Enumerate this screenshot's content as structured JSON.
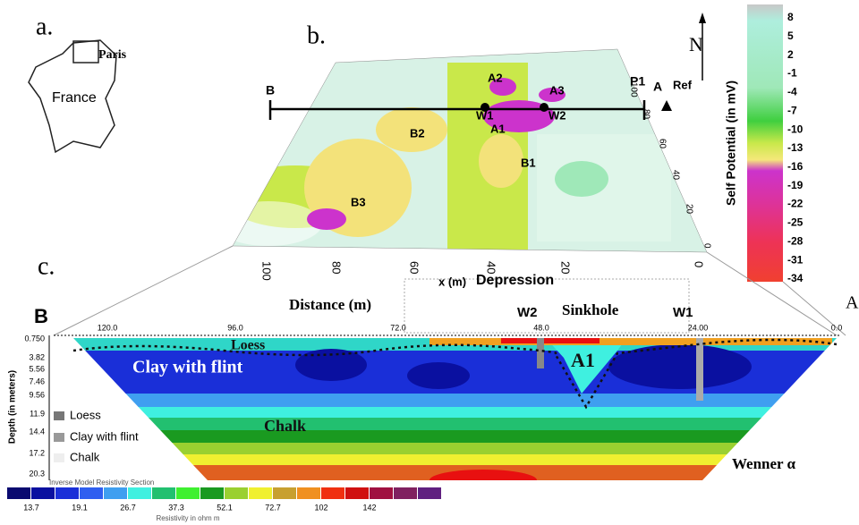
{
  "panel_a": {
    "label": "a.",
    "city": "Paris",
    "country": "France"
  },
  "panel_b": {
    "label": "b.",
    "profile_start": "B",
    "profile_end": "P1",
    "ref_letter": "A",
    "ref": "Ref",
    "anomalies": [
      "A2",
      "A3",
      "W1",
      "W2",
      "A1",
      "B2",
      "B1",
      "B3"
    ],
    "north": "N",
    "x_axis": "x (m)",
    "depression": "Depression",
    "x_ticks": [
      "100",
      "80",
      "60",
      "40",
      "20",
      "0"
    ],
    "y_ticks": [
      "0",
      "20",
      "40",
      "60",
      "80",
      "100"
    ],
    "colorbar": {
      "title": "Self Potential (in mV)",
      "ticks": [
        "8",
        "5",
        "2",
        "-1",
        "-4",
        "-7",
        "-10",
        "-13",
        "-16",
        "-19",
        "-22",
        "-25",
        "-28",
        "-31",
        "-34"
      ]
    }
  },
  "panel_c": {
    "label": "c.",
    "left_end": "B",
    "right_end": "A",
    "distance": "Distance (m)",
    "sinkhole": "Sinkhole",
    "well_2": "W2",
    "well_1": "W1",
    "distance_ticks": [
      "120.0",
      "96.0",
      "72.0",
      "48.0",
      "24.00",
      "0.0"
    ],
    "depth_title": "Depth (in meters)",
    "depth_ticks": [
      "0.750",
      "3.82",
      "5.56",
      "7.46",
      "9.56",
      "11.9",
      "14.4",
      "17.2",
      "20.3"
    ],
    "layers": [
      "Loess",
      "Clay with flint",
      "Chalk",
      "A1"
    ],
    "legend": [
      "Loess",
      "Clay with flint",
      "Chalk"
    ],
    "array": "Wenner α",
    "section_title": "Inverse Model Resistivity Section",
    "resistivity_ticks": [
      "13.7",
      "19.1",
      "26.7",
      "37.3",
      "52.1",
      "72.7",
      "102",
      "142"
    ],
    "resistivity_unit": "Resistivity in ohm m"
  }
}
